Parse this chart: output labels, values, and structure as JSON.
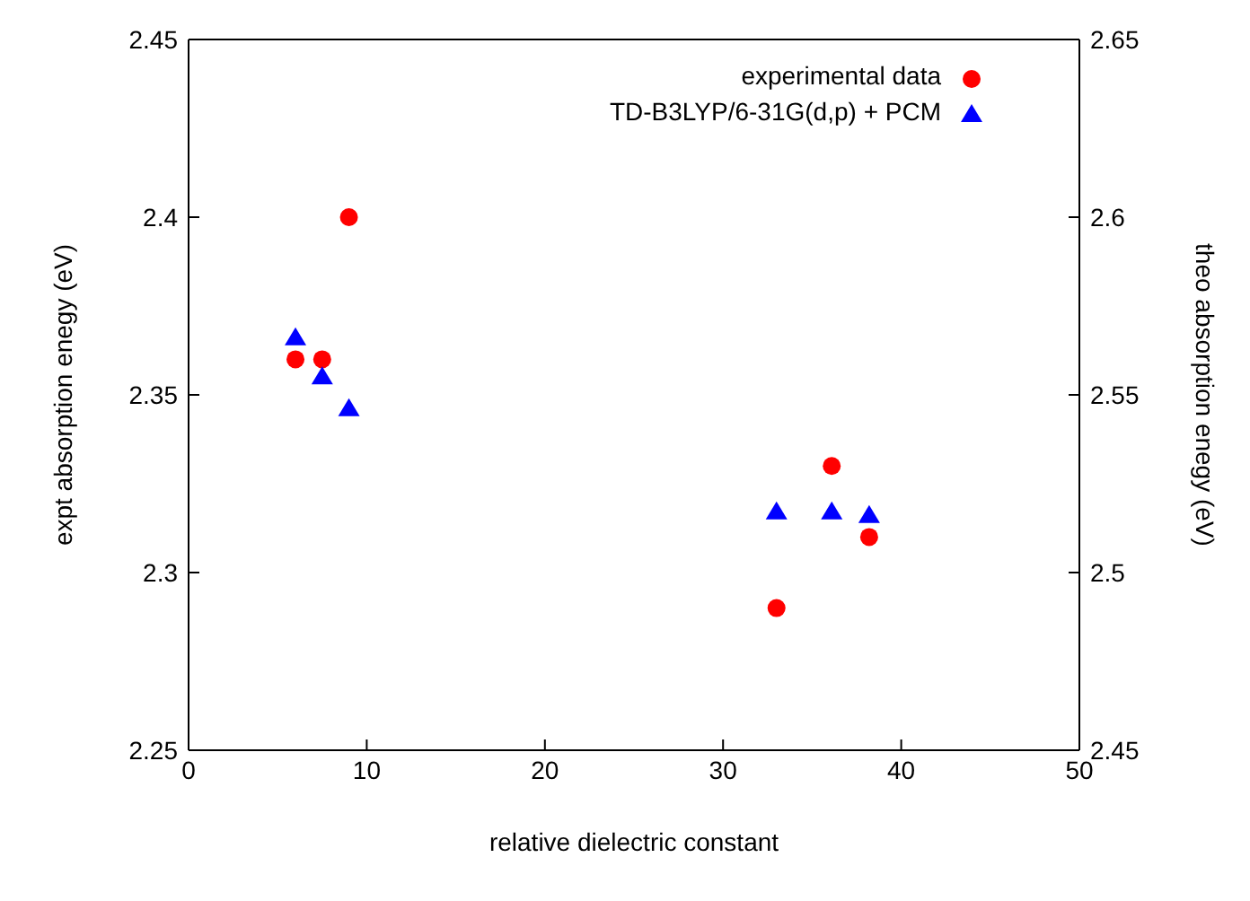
{
  "chart_data": {
    "type": "scatter",
    "xlabel": "relative dielectric constant",
    "ylabel": "expt absorption enegy (eV)",
    "y2label": "theo absorption enegy (eV)",
    "xlim": [
      0,
      50
    ],
    "xticks": [
      0,
      10,
      20,
      30,
      40,
      50
    ],
    "ylim": [
      2.25,
      2.45
    ],
    "yticks": [
      2.25,
      2.3,
      2.35,
      2.4,
      2.45
    ],
    "y2lim": [
      2.45,
      2.65
    ],
    "y2ticks": [
      2.45,
      2.5,
      2.55,
      2.6,
      2.65
    ],
    "legend": "top right",
    "series": [
      {
        "name": "experimental data",
        "color": "#ff0000",
        "marker": "circle",
        "x": [
          6,
          7.5,
          9,
          33,
          36.1,
          38.2
        ],
        "values": [
          2.36,
          2.36,
          2.4,
          2.29,
          2.33,
          2.31
        ]
      },
      {
        "name": "TD-B3LYP/6-31G(d,p) + PCM",
        "color": "#0000ff",
        "marker": "triangle",
        "axis": "y2",
        "x": [
          6,
          7.5,
          9,
          33,
          36.1,
          38.2
        ],
        "values": [
          2.566,
          2.555,
          2.546,
          2.517,
          2.517,
          2.516
        ]
      }
    ]
  }
}
